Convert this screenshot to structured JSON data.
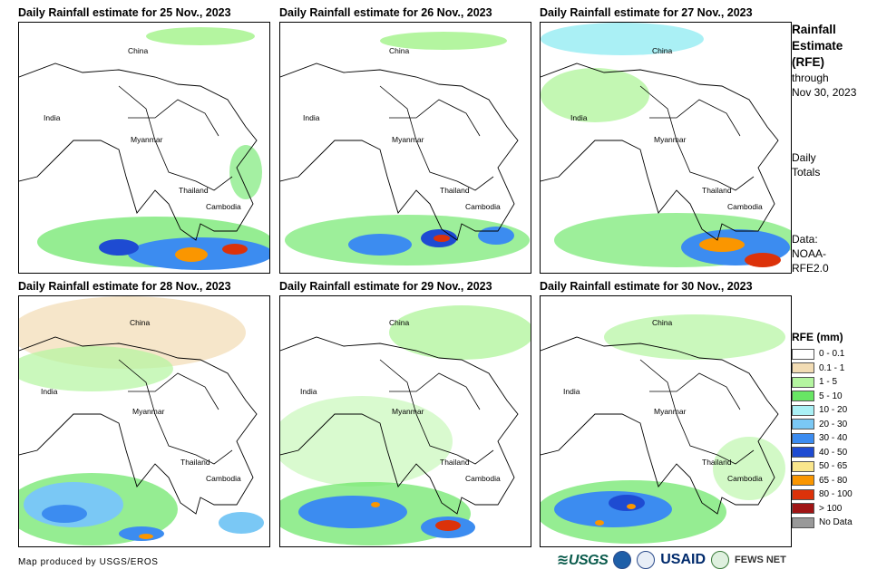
{
  "panels": [
    {
      "title": "Daily Rainfall estimate for 25 Nov., 2023"
    },
    {
      "title": "Daily Rainfall estimate for 26 Nov., 2023"
    },
    {
      "title": "Daily Rainfall estimate for 27 Nov., 2023"
    },
    {
      "title": "Daily Rainfall estimate for 28 Nov., 2023"
    },
    {
      "title": "Daily Rainfall estimate for 29 Nov., 2023"
    },
    {
      "title": "Daily Rainfall estimate for 30 Nov., 2023"
    }
  ],
  "map_labels": {
    "china": "China",
    "india": "India",
    "myanmar": "Myanmar",
    "thailand": "Thailand",
    "cambodia": "Cambodia"
  },
  "sidebar": {
    "title_line1": "Rainfall",
    "title_line2": "Estimate",
    "title_line3": "(RFE)",
    "through": "through",
    "date": "Nov 30, 2023",
    "daily": "Daily",
    "totals": "Totals",
    "data_label": "Data:",
    "source1": "NOAA-",
    "source2": "RFE2.0"
  },
  "legend": {
    "title": "RFE (mm)",
    "items": [
      {
        "label": "0 - 0.1",
        "color": "#ffffff"
      },
      {
        "label": "0.1 - 1",
        "color": "#f2dcb4"
      },
      {
        "label": "1 - 5",
        "color": "#b4f5a0"
      },
      {
        "label": "5 - 10",
        "color": "#68e664"
      },
      {
        "label": "10 - 20",
        "color": "#aaf0f5"
      },
      {
        "label": "20 - 30",
        "color": "#7ac8f5"
      },
      {
        "label": "30 - 40",
        "color": "#3c8cf0"
      },
      {
        "label": "40 - 50",
        "color": "#1e4bd2"
      },
      {
        "label": "50 - 65",
        "color": "#fae68c"
      },
      {
        "label": "65 - 80",
        "color": "#fa9600"
      },
      {
        "label": "80 - 100",
        "color": "#dc320a"
      },
      {
        "label": "> 100",
        "color": "#a01414"
      },
      {
        "label": "No Data",
        "color": "#999999"
      }
    ]
  },
  "credit": "Map produced by USGS/EROS",
  "logos": {
    "usgs": "≋USGS",
    "usaid": "USAID",
    "fews": "FEWS NET"
  }
}
